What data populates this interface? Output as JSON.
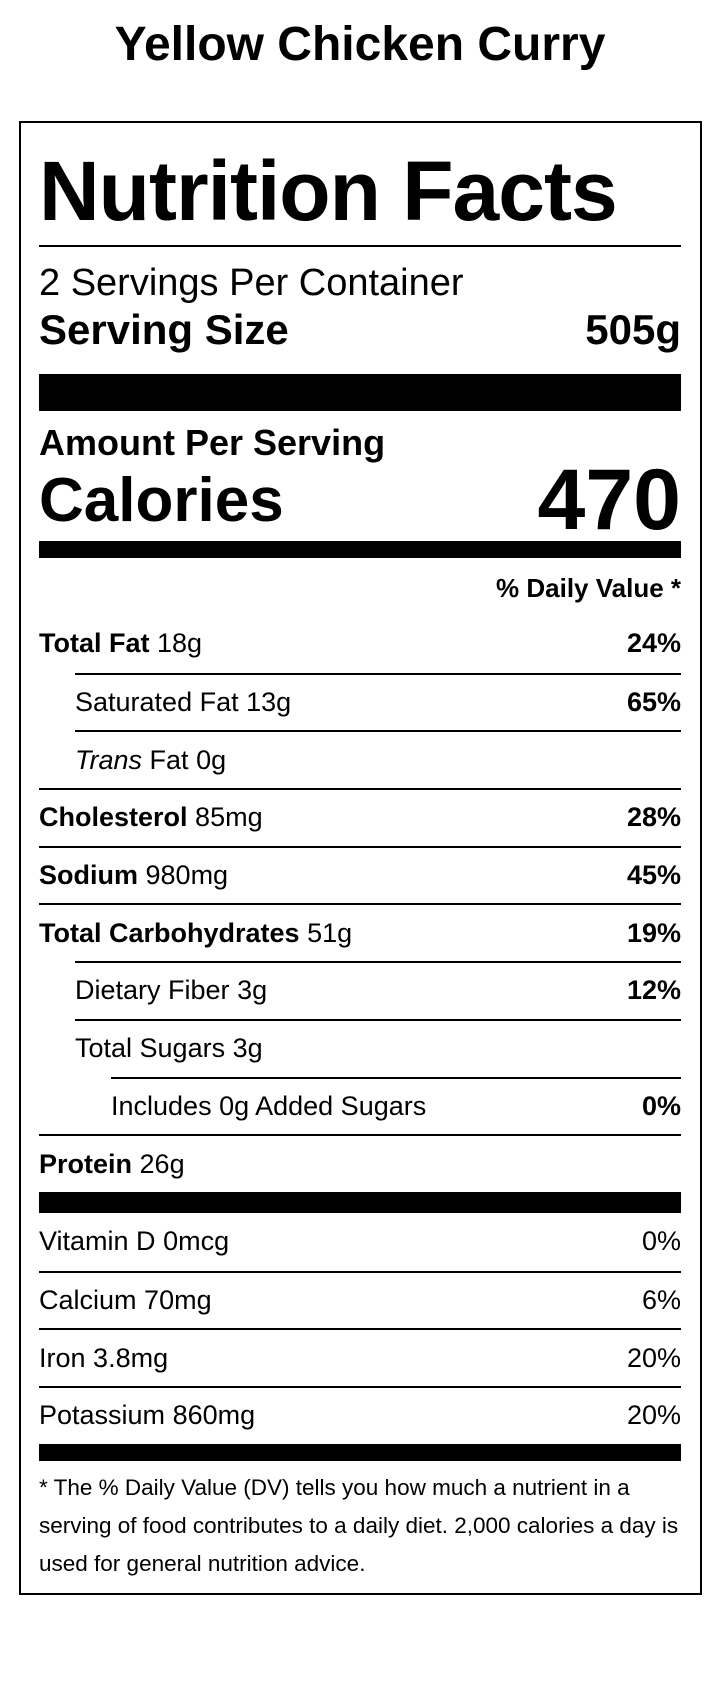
{
  "title": "Yellow Chicken Curry",
  "label": {
    "heading": "Nutrition Facts",
    "servings_per_container": "2 Servings Per Container",
    "serving_size": {
      "label": "Serving Size",
      "value": "505g"
    },
    "amount_per_serving": "Amount Per Serving",
    "calories": {
      "label": "Calories",
      "value": "470"
    },
    "daily_value_header": "% Daily Value *",
    "nutrients": [
      {
        "name": "Total Fat",
        "amount": "18g",
        "dv": "24%"
      },
      {
        "name": "Saturated Fat",
        "amount": "13g",
        "dv": "65%",
        "indent": 1
      },
      {
        "italic": "Trans",
        "name": "Fat",
        "amount": "0g",
        "indent": 1
      },
      {
        "name": "Cholesterol",
        "amount": "85mg",
        "dv": "28%"
      },
      {
        "name": "Sodium",
        "amount": "980mg",
        "dv": "45%"
      },
      {
        "name": "Total Carbohydrates",
        "amount": "51g",
        "dv": "19%"
      },
      {
        "name": "Dietary Fiber",
        "amount": "3g",
        "dv": "12%",
        "indent": 1
      },
      {
        "name": "Total Sugars",
        "amount": "3g",
        "indent": 1
      },
      {
        "name": "Includes 0g Added Sugars",
        "dv": "0%",
        "indent": 2
      },
      {
        "name": "Protein",
        "amount": "26g"
      }
    ],
    "vitamins": [
      {
        "name": "Vitamin D",
        "amount": "0mcg",
        "dv": "0%"
      },
      {
        "name": "Calcium",
        "amount": "70mg",
        "dv": "6%"
      },
      {
        "name": "Iron",
        "amount": "3.8mg",
        "dv": "20%"
      },
      {
        "name": "Potassium",
        "amount": "860mg",
        "dv": "20%"
      }
    ],
    "footnote": "* The % Daily Value (DV) tells you how much a nutrient in a serving of food contributes to a daily diet. 2,000 calories a day is used for general nutrition advice."
  }
}
